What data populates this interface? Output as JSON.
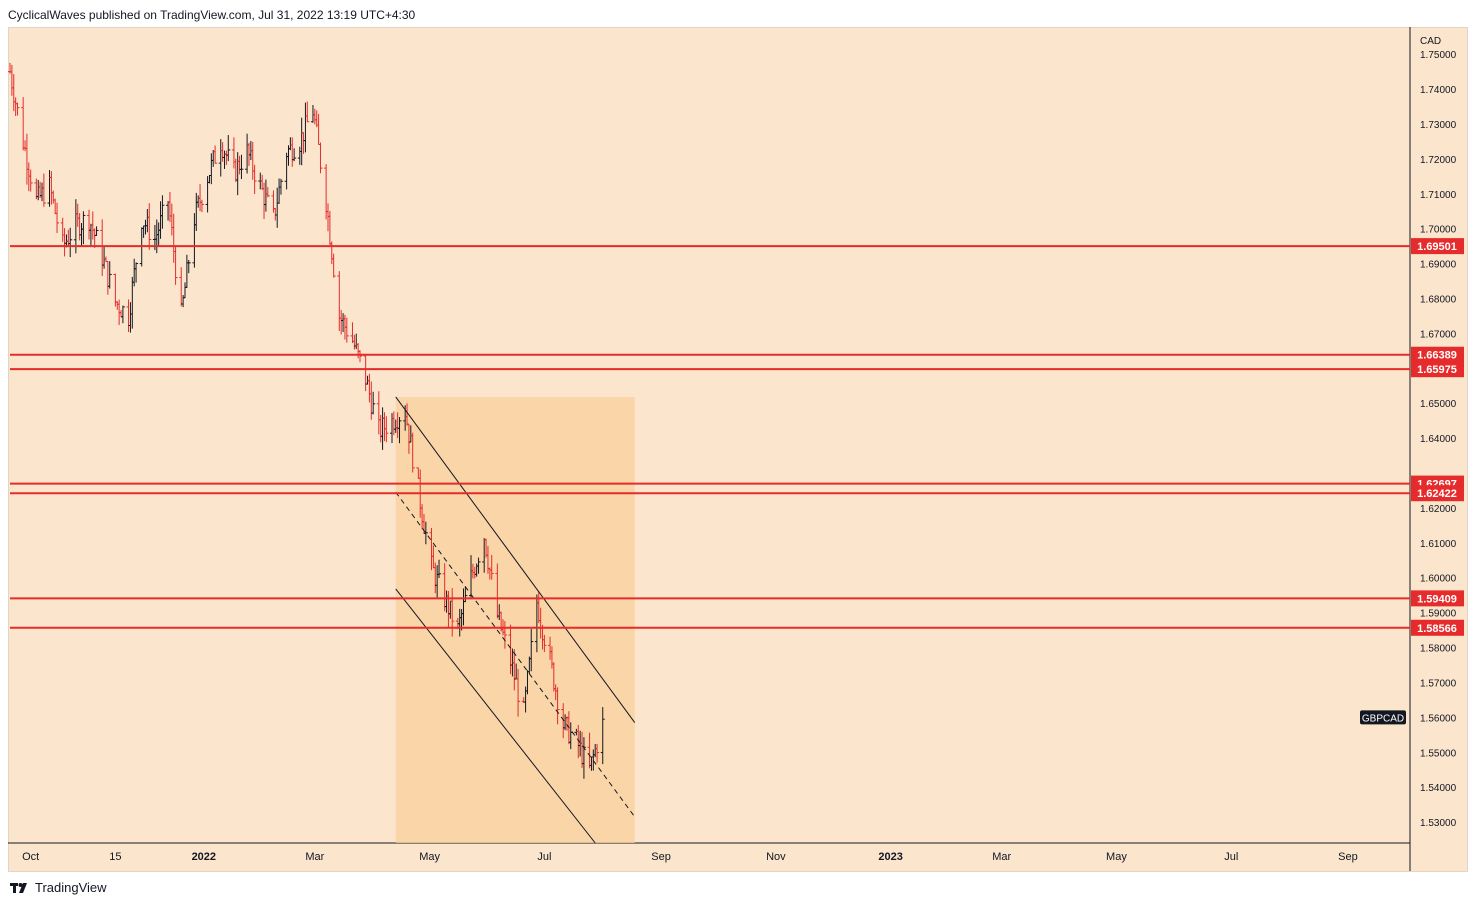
{
  "header": {
    "text": "CyclicalWaves published on TradingView.com, Jul 31, 2022 13:19 UTC+4:30"
  },
  "footer": {
    "brand": "TradingView"
  },
  "colors": {
    "background": "#fbe5cc",
    "up_bar": "#131722",
    "down_bar": "#e52b2b",
    "level_line": "#e52b2b",
    "channel_line": "#131722",
    "channel_fill": "#f8cf9c"
  },
  "chart_data": {
    "type": "ohlc",
    "symbol": "GBPCAD",
    "currency": "CAD",
    "y_axis": {
      "ylim": [
        1.524,
        1.7575
      ],
      "ticks": [
        "1.75000",
        "1.74000",
        "1.73000",
        "1.72000",
        "1.71000",
        "1.70000",
        "1.69000",
        "1.68000",
        "1.67000",
        "1.65000",
        "1.64000",
        "1.62000",
        "1.61000",
        "1.60000",
        "1.59000",
        "1.58000",
        "1.57000",
        "1.56000",
        "1.55000",
        "1.54000",
        "1.53000"
      ]
    },
    "x_axis": {
      "ticks": [
        {
          "label": "Oct",
          "date": "2021-10-01"
        },
        {
          "label": "15",
          "date": "2021-11-15"
        },
        {
          "label": "2022",
          "date": "2022-01-01"
        },
        {
          "label": "Mar",
          "date": "2022-03-01"
        },
        {
          "label": "May",
          "date": "2022-05-01"
        },
        {
          "label": "Jul",
          "date": "2022-07-01"
        },
        {
          "label": "Sep",
          "date": "2022-09-01"
        },
        {
          "label": "Nov",
          "date": "2022-11-01"
        },
        {
          "label": "2023",
          "date": "2023-01-01"
        },
        {
          "label": "Mar",
          "date": "2023-03-01"
        },
        {
          "label": "May",
          "date": "2023-05-01"
        },
        {
          "label": "Jul",
          "date": "2023-07-01"
        },
        {
          "label": "Sep",
          "date": "2023-09-01"
        }
      ]
    },
    "levels": [
      {
        "value": 1.69501,
        "label": "1.69501"
      },
      {
        "value": 1.66389,
        "label": "1.66389"
      },
      {
        "value": 1.65975,
        "label": "1.65975"
      },
      {
        "value": 1.62697,
        "label": "1.62697"
      },
      {
        "value": 1.62422,
        "label": "1.62422"
      },
      {
        "value": 1.59409,
        "label": "1.59409"
      },
      {
        "value": 1.58566,
        "label": "1.58566"
      }
    ],
    "last_price_label": "GBPCAD",
    "channel": {
      "upper": [
        {
          "date": "2022-04-13",
          "price": 1.6518
        },
        {
          "date": "2022-08-18",
          "price": 1.5585
        }
      ],
      "lower": [
        {
          "date": "2022-04-13",
          "price": 1.5968
        },
        {
          "date": "2022-07-28",
          "price": 1.524
        }
      ],
      "mid": [
        {
          "date": "2022-04-13",
          "price": 1.6245
        },
        {
          "date": "2022-08-18",
          "price": 1.5315
        }
      ],
      "shade": {
        "from": "2022-04-13",
        "to": "2022-08-18"
      }
    },
    "path": [
      [
        "2021-09-20",
        1.745
      ],
      [
        "2021-09-27",
        1.725
      ],
      [
        "2021-10-04",
        1.708
      ],
      [
        "2021-10-11",
        1.712
      ],
      [
        "2021-10-18",
        1.695
      ],
      [
        "2021-10-25",
        1.701
      ],
      [
        "2021-11-01",
        1.703
      ],
      [
        "2021-11-08",
        1.692
      ],
      [
        "2021-11-15",
        1.679
      ],
      [
        "2021-11-22",
        1.675
      ],
      [
        "2021-11-29",
        1.703
      ],
      [
        "2021-12-06",
        1.697
      ],
      [
        "2021-12-13",
        1.708
      ],
      [
        "2021-12-20",
        1.675
      ],
      [
        "2021-12-27",
        1.703
      ],
      [
        "2022-01-03",
        1.715
      ],
      [
        "2022-01-10",
        1.725
      ],
      [
        "2022-01-17",
        1.716
      ],
      [
        "2022-01-24",
        1.722
      ],
      [
        "2022-01-31",
        1.712
      ],
      [
        "2022-02-07",
        1.703
      ],
      [
        "2022-02-14",
        1.722
      ],
      [
        "2022-02-21",
        1.725
      ],
      [
        "2022-02-28",
        1.734
      ],
      [
        "2022-03-07",
        1.708
      ],
      [
        "2022-03-14",
        1.675
      ],
      [
        "2022-03-21",
        1.668
      ],
      [
        "2022-03-28",
        1.657
      ],
      [
        "2022-04-04",
        1.642
      ],
      [
        "2022-04-11",
        1.645
      ],
      [
        "2022-04-18",
        1.648
      ],
      [
        "2022-04-25",
        1.625
      ],
      [
        "2022-05-02",
        1.603
      ],
      [
        "2022-05-09",
        1.594
      ],
      [
        "2022-05-16",
        1.585
      ],
      [
        "2022-05-23",
        1.6
      ],
      [
        "2022-05-30",
        1.612
      ],
      [
        "2022-06-06",
        1.589
      ],
      [
        "2022-06-13",
        1.576
      ],
      [
        "2022-06-20",
        1.561
      ],
      [
        "2022-06-27",
        1.593
      ],
      [
        "2022-07-04",
        1.576
      ],
      [
        "2022-07-11",
        1.558
      ],
      [
        "2022-07-18",
        1.553
      ],
      [
        "2022-07-25",
        1.545
      ],
      [
        "2022-08-01",
        1.558
      ]
    ]
  }
}
